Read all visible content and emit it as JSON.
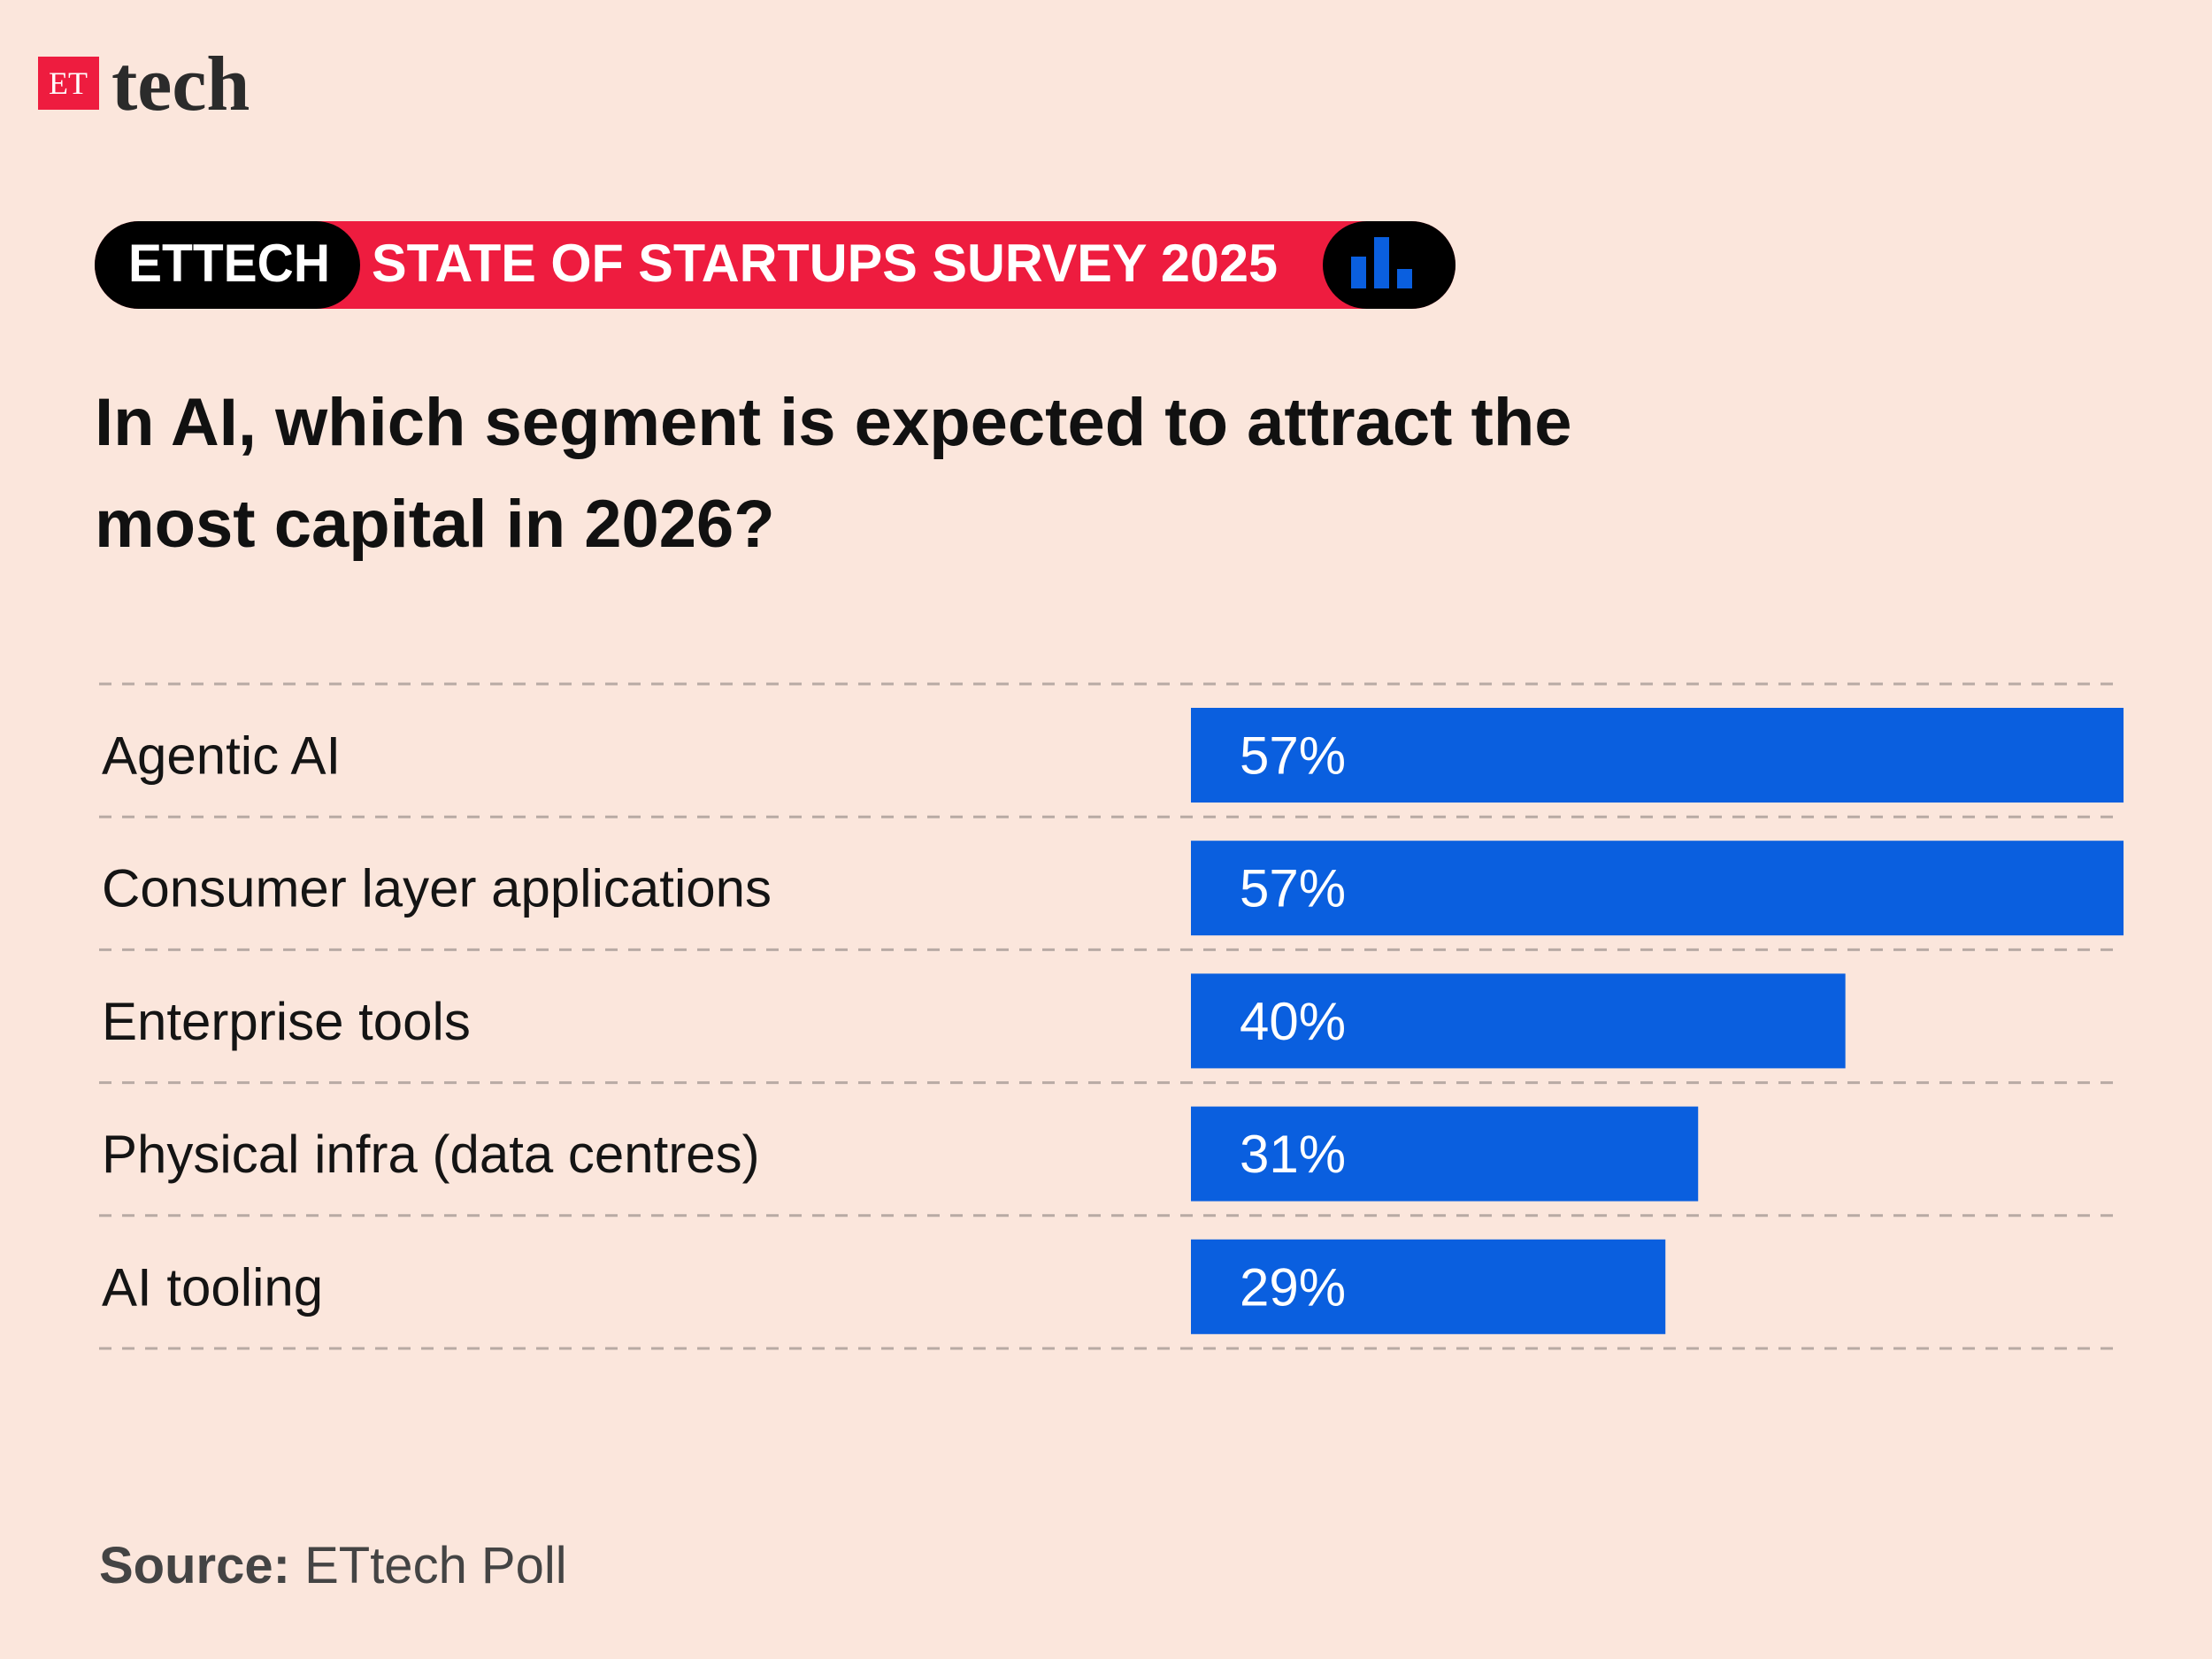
{
  "header": {
    "logo_et": "ET",
    "logo_tech": "tech",
    "badge": "ETTECH",
    "banner": "STATE OF STARTUPS SURVEY 2025"
  },
  "chart_data": {
    "type": "bar",
    "orientation": "horizontal",
    "title": "In AI, which segment is expected to attract the most capital in 2026?",
    "categories": [
      "Agentic AI",
      "Consumer layer applications",
      "Enterprise tools",
      "Physical infra (data centres)",
      "AI tooling"
    ],
    "values": [
      57,
      57,
      40,
      31,
      29
    ],
    "value_labels": [
      "57%",
      "57%",
      "40%",
      "31%",
      "29%"
    ],
    "color": "#0a5fdf",
    "xlim": [
      0,
      57
    ]
  },
  "footer": {
    "source_label": "Source:",
    "source": "ETtech Poll"
  }
}
